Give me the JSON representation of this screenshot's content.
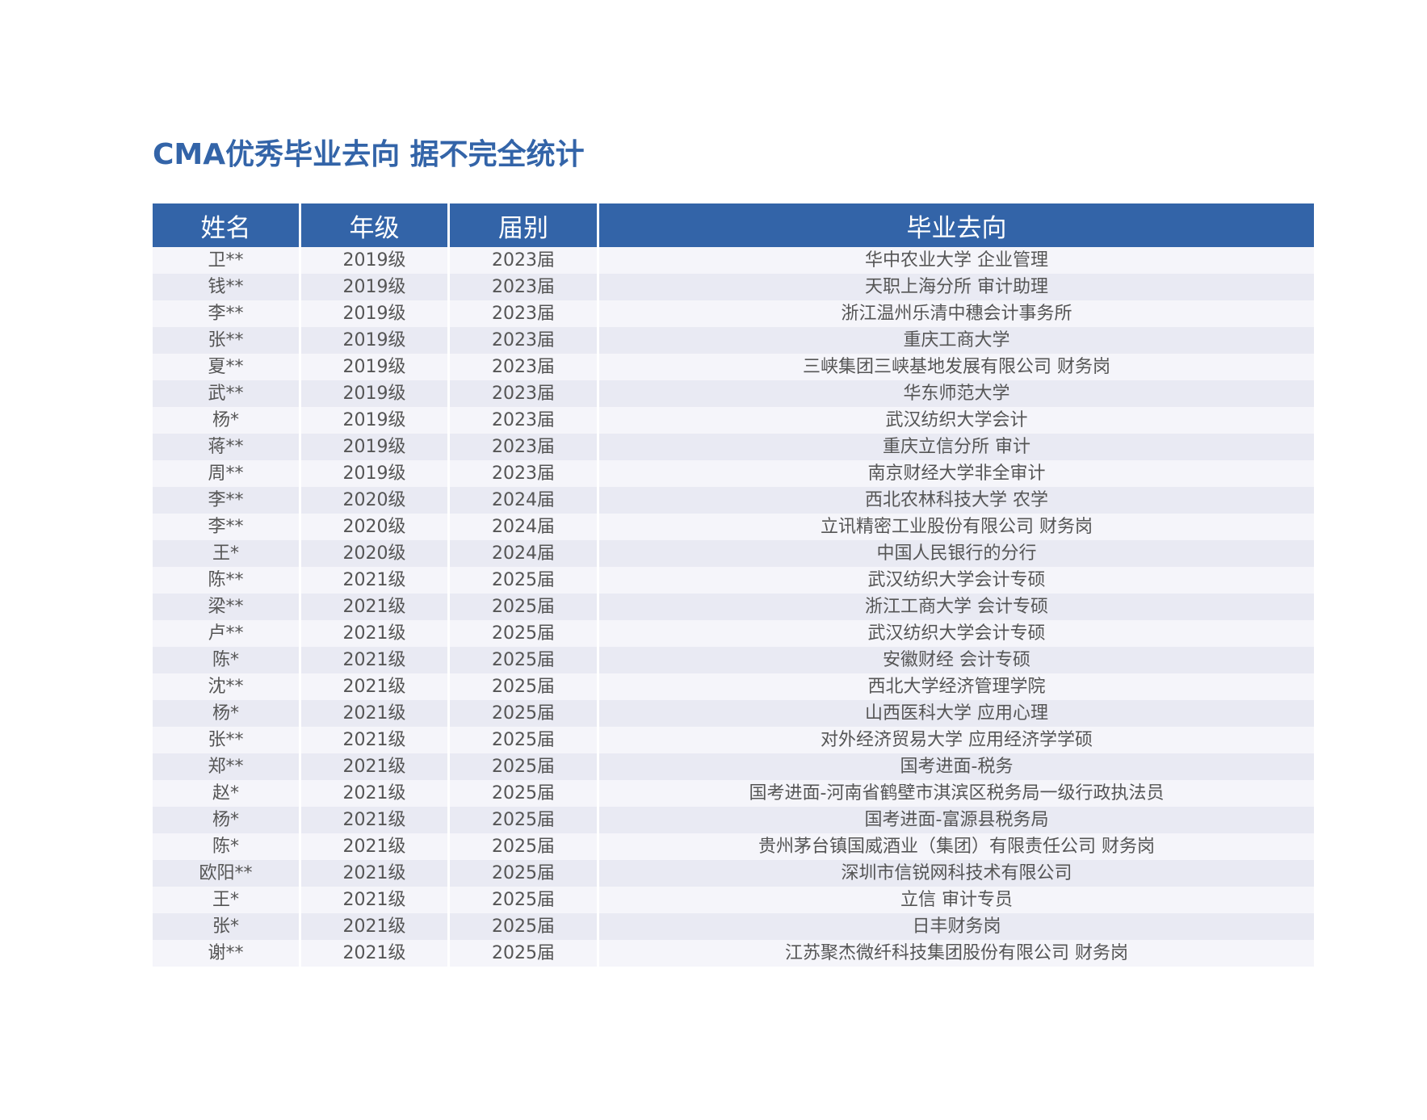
{
  "title": "CMA优秀毕业去向 据不完全统计",
  "table": {
    "headers": [
      "姓名",
      "年级",
      "届别",
      "毕业去向"
    ],
    "rows": [
      [
        "卫**",
        "2019级",
        "2023届",
        "华中农业大学 企业管理"
      ],
      [
        "钱**",
        "2019级",
        "2023届",
        "天职上海分所  审计助理"
      ],
      [
        "李**",
        "2019级",
        "2023届",
        "浙江温州乐清中穗会计事务所"
      ],
      [
        "张**",
        "2019级",
        "2023届",
        "重庆工商大学"
      ],
      [
        "夏**",
        "2019级",
        "2023届",
        "三峡集团三峡基地发展有限公司  财务岗"
      ],
      [
        "武**",
        "2019级",
        "2023届",
        "华东师范大学"
      ],
      [
        "杨*",
        "2019级",
        "2023届",
        "武汉纺织大学会计"
      ],
      [
        "蒋**",
        "2019级",
        "2023届",
        "重庆立信分所  审计"
      ],
      [
        "周**",
        "2019级",
        "2023届",
        "南京财经大学非全审计"
      ],
      [
        "李**",
        "2020级",
        "2024届",
        "西北农林科技大学 农学"
      ],
      [
        "李**",
        "2020级",
        "2024届",
        "立讯精密工业股份有限公司  财务岗"
      ],
      [
        "王*",
        "2020级",
        "2024届",
        "中国人民银行的分行"
      ],
      [
        "陈**",
        "2021级",
        "2025届",
        "武汉纺织大学会计专硕"
      ],
      [
        "梁**",
        "2021级",
        "2025届",
        "浙江工商大学 会计专硕"
      ],
      [
        "卢**",
        "2021级",
        "2025届",
        "武汉纺织大学会计专硕"
      ],
      [
        "陈*",
        "2021级",
        "2025届",
        "安徽财经 会计专硕"
      ],
      [
        "沈**",
        "2021级",
        "2025届",
        "西北大学经济管理学院"
      ],
      [
        "杨*",
        "2021级",
        "2025届",
        "山西医科大学 应用心理"
      ],
      [
        "张**",
        "2021级",
        "2025届",
        "对外经济贸易大学 应用经济学学硕"
      ],
      [
        "郑**",
        "2021级",
        "2025届",
        "国考进面-税务"
      ],
      [
        "赵*",
        "2021级",
        "2025届",
        "国考进面-河南省鹤壁市淇滨区税务局一级行政执法员"
      ],
      [
        "杨*",
        "2021级",
        "2025届",
        "国考进面-富源县税务局"
      ],
      [
        "陈*",
        "2021级",
        "2025届",
        "贵州茅台镇国威酒业（集团）有限责任公司 财务岗"
      ],
      [
        "欧阳**",
        "2021级",
        "2025届",
        "深圳市信锐网科技术有限公司"
      ],
      [
        "王*",
        "2021级",
        "2025届",
        "立信 审计专员"
      ],
      [
        "张*",
        "2021级",
        "2025届",
        "日丰财务岗"
      ],
      [
        "谢**",
        "2021级",
        "2025届",
        "江苏聚杰微纤科技集团股份有限公司 财务岗"
      ]
    ]
  },
  "colors": {
    "header_bg": "#3364a8",
    "row_odd": "#f5f5fa",
    "row_even": "#e9eaf3"
  }
}
